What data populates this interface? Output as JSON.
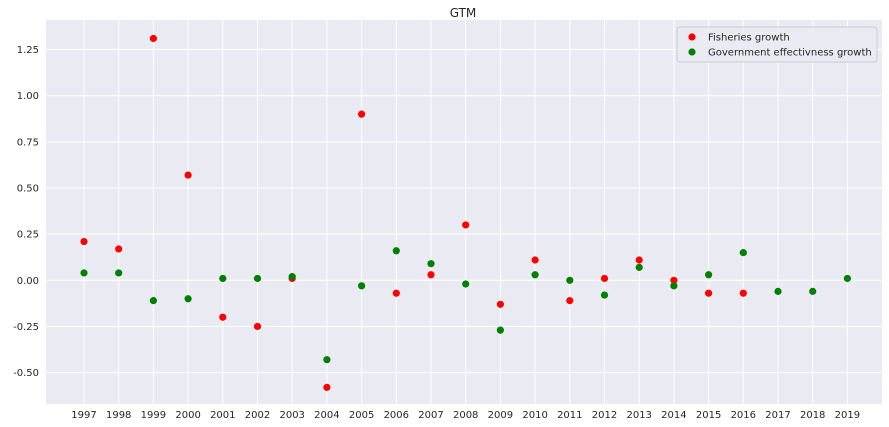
{
  "chart_data": {
    "type": "scatter",
    "title": "GTM",
    "xlabel": "",
    "ylabel": "",
    "x_categories": [
      "1997",
      "1998",
      "1999",
      "2000",
      "2001",
      "2002",
      "2003",
      "2004",
      "2005",
      "2006",
      "2007",
      "2008",
      "2009",
      "2010",
      "2011",
      "2012",
      "2013",
      "2014",
      "2015",
      "2016",
      "2017",
      "2018",
      "2019"
    ],
    "y_ticks": [
      "-0.50",
      "-0.25",
      "0.00",
      "0.25",
      "0.50",
      "0.75",
      "1.00",
      "1.25"
    ],
    "ylim": [
      -0.67,
      1.41
    ],
    "grid": true,
    "legend_position": "top-right",
    "series": [
      {
        "name": "Fisheries growth",
        "color": "#ff0000",
        "points": [
          {
            "x": "1997",
            "y": 0.21
          },
          {
            "x": "1998",
            "y": 0.17
          },
          {
            "x": "1999",
            "y": 1.31
          },
          {
            "x": "2000",
            "y": 0.57
          },
          {
            "x": "2001",
            "y": -0.2
          },
          {
            "x": "2002",
            "y": -0.25
          },
          {
            "x": "2003",
            "y": 0.01
          },
          {
            "x": "2004",
            "y": -0.58
          },
          {
            "x": "2005",
            "y": 0.9
          },
          {
            "x": "2006",
            "y": -0.07
          },
          {
            "x": "2007",
            "y": 0.03
          },
          {
            "x": "2008",
            "y": 0.3
          },
          {
            "x": "2009",
            "y": -0.13
          },
          {
            "x": "2010",
            "y": 0.11
          },
          {
            "x": "2011",
            "y": -0.11
          },
          {
            "x": "2012",
            "y": 0.01
          },
          {
            "x": "2013",
            "y": 0.11
          },
          {
            "x": "2014",
            "y": 0.0
          },
          {
            "x": "2015",
            "y": -0.07
          },
          {
            "x": "2016",
            "y": -0.07
          }
        ]
      },
      {
        "name": "Government effectivness growth",
        "color": "#008000",
        "points": [
          {
            "x": "1997",
            "y": 0.04
          },
          {
            "x": "1998",
            "y": 0.04
          },
          {
            "x": "1999",
            "y": -0.11
          },
          {
            "x": "2000",
            "y": -0.1
          },
          {
            "x": "2001",
            "y": 0.01
          },
          {
            "x": "2002",
            "y": 0.01
          },
          {
            "x": "2003",
            "y": 0.02
          },
          {
            "x": "2004",
            "y": -0.43
          },
          {
            "x": "2005",
            "y": -0.03
          },
          {
            "x": "2006",
            "y": 0.16
          },
          {
            "x": "2007",
            "y": 0.09
          },
          {
            "x": "2008",
            "y": -0.02
          },
          {
            "x": "2009",
            "y": -0.27
          },
          {
            "x": "2010",
            "y": 0.03
          },
          {
            "x": "2011",
            "y": 0.0
          },
          {
            "x": "2012",
            "y": -0.08
          },
          {
            "x": "2013",
            "y": 0.07
          },
          {
            "x": "2014",
            "y": -0.03
          },
          {
            "x": "2015",
            "y": 0.03
          },
          {
            "x": "2016",
            "y": 0.15
          },
          {
            "x": "2017",
            "y": -0.06
          },
          {
            "x": "2018",
            "y": -0.06
          },
          {
            "x": "2019",
            "y": 0.01
          }
        ]
      }
    ]
  }
}
